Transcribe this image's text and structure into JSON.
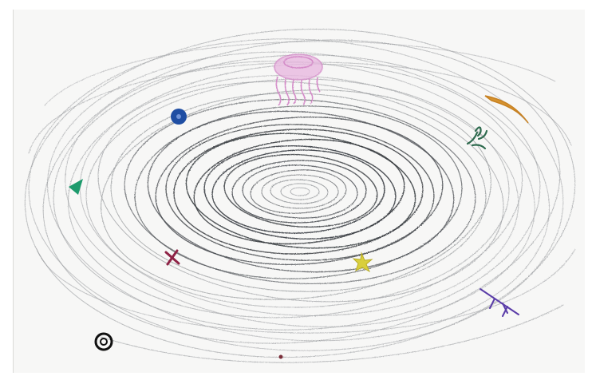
{
  "image": {
    "kind": "pencil drawing",
    "colors": {
      "paper": "#f7f7f6",
      "graphite": "#6f7276",
      "graphite_dark": "#2f3338",
      "jellyfish": "#d48bc8",
      "blue_planet": "#1f4ea3",
      "green_triangle": "#1d9a6c",
      "green_creature": "#2f6b4f",
      "cross": "#8e2346",
      "yellow_star": "#d9cf3d",
      "orange_swoosh": "#d6932f",
      "purple_branch": "#5a3ca8",
      "black_ring": "#111111",
      "dot": "#7a2e3a"
    }
  },
  "marks": [
    {
      "name": "jellyfish-drawing"
    },
    {
      "name": "blue-planet-drawing"
    },
    {
      "name": "green-triangle-drawing"
    },
    {
      "name": "green-creature-drawing"
    },
    {
      "name": "red-cross-drawing"
    },
    {
      "name": "yellow-star-drawing"
    },
    {
      "name": "orange-swoosh-drawing"
    },
    {
      "name": "purple-branch-drawing"
    },
    {
      "name": "black-ring-drawing"
    },
    {
      "name": "small-dot-drawing"
    }
  ]
}
